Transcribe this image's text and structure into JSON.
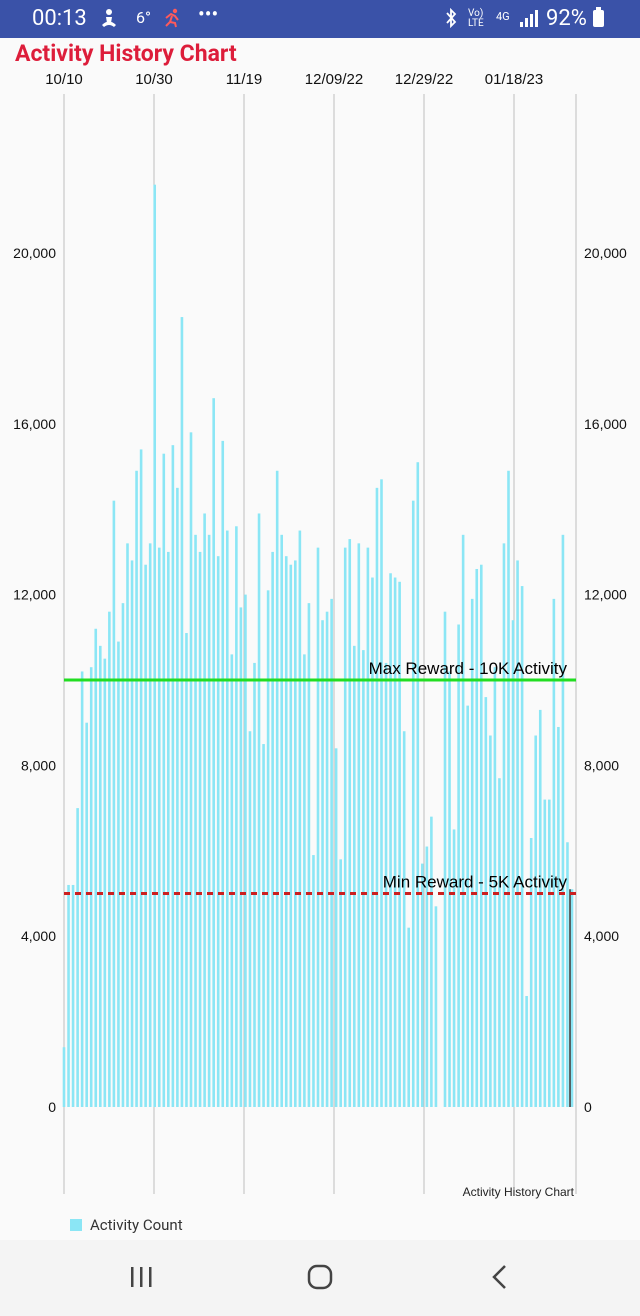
{
  "status_bar": {
    "time": "00:13",
    "temp": "6°",
    "network": "4G",
    "volte": "Vo) LTE",
    "battery": "92%",
    "bg": "#3a52a8"
  },
  "chart_data": {
    "type": "bar",
    "title": "Activity History Chart",
    "description_label": "Activity History Chart",
    "x_tick_labels": [
      "10/10",
      "10/30",
      "11/19",
      "12/09/22",
      "12/29/22",
      "01/18/23"
    ],
    "y_ticks": [
      0,
      4000,
      8000,
      12000,
      16000,
      20000
    ],
    "y_tick_labels": [
      "0",
      "4,000",
      "8,000",
      "12,000",
      "16,000",
      "20,000"
    ],
    "ylim": [
      0,
      24000
    ],
    "grid": true,
    "legend_position": "bottom-left",
    "series": [
      {
        "name": "Activity Count",
        "color": "#8be6f5",
        "values": [
          1400,
          5200,
          5200,
          7000,
          10200,
          9000,
          10300,
          11200,
          10800,
          10500,
          11600,
          14200,
          10900,
          11800,
          13200,
          12800,
          14900,
          15400,
          12700,
          13200,
          21600,
          13100,
          15300,
          13000,
          15500,
          14500,
          18500,
          11100,
          15800,
          13400,
          13000,
          13900,
          13400,
          16600,
          12900,
          15600,
          13500,
          10600,
          13600,
          11700,
          12000,
          8800,
          10400,
          13900,
          8500,
          12100,
          13000,
          14900,
          13400,
          12900,
          12700,
          12800,
          13500,
          10600,
          11800,
          5900,
          13100,
          11400,
          11600,
          11900,
          8400,
          5800,
          13100,
          13300,
          10800,
          13200,
          10700,
          13100,
          12400,
          14500,
          14700,
          10400,
          12500,
          12400,
          12300,
          8800,
          4200,
          14200,
          15100,
          5700,
          6100,
          6800,
          4700,
          0,
          11600,
          10200,
          6500,
          11300,
          13400,
          9400,
          11900,
          12600,
          12700,
          9600,
          8700,
          10300,
          7700,
          13200,
          14900,
          11400,
          12800,
          12200,
          2600,
          6300,
          8700,
          9300,
          7200,
          7200,
          11900,
          8900,
          13400,
          6200,
          5100
        ]
      }
    ],
    "annotations": [
      {
        "label": "Max Reward - 10K Activity",
        "value": 10000,
        "color": "#22dd22",
        "style": "solid"
      },
      {
        "label": "Min Reward - 5K Activity",
        "value": 5000,
        "color": "#cc2020",
        "style": "dashed"
      }
    ]
  },
  "legend": {
    "label": "Activity Count"
  },
  "nav_bar": {
    "buttons": [
      "recent-apps",
      "home",
      "back"
    ]
  }
}
